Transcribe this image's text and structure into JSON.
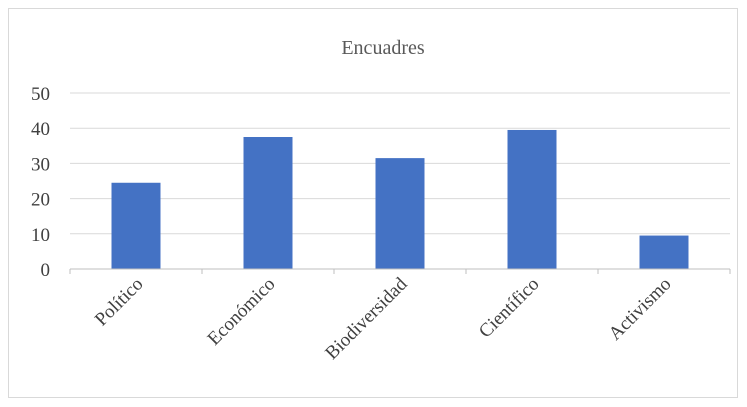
{
  "chart_data": {
    "type": "bar",
    "title": "Encuadres",
    "categories": [
      "Político",
      "Económico",
      "Biodiversidad",
      "Científico",
      "Activismo"
    ],
    "values": [
      24.5,
      37.5,
      31.5,
      39.5,
      9.5
    ],
    "ylim": [
      0,
      50
    ],
    "yticks": [
      0,
      10,
      20,
      30,
      40,
      50
    ],
    "grid": true,
    "legend": "none",
    "bar_color": "#4472C4",
    "grid_color": "#d9d9d9"
  }
}
